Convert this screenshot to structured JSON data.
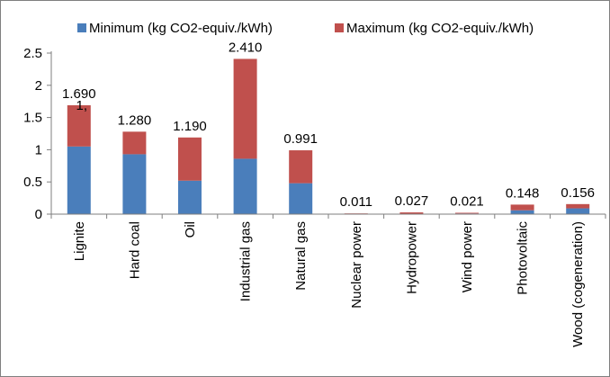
{
  "chart_data": {
    "type": "bar",
    "stacked": true,
    "categories": [
      "Lignite",
      "Hard coal",
      "Oil",
      "Industrial gas",
      "Natural gas",
      "Nuclear power",
      "Hydropower",
      "Wind power",
      "Photovoltaic",
      "Wood (cogeneration)"
    ],
    "series": [
      {
        "name": "Minimum (kg CO2-equiv./kWh)",
        "color": "#4a7ebb",
        "values": [
          1.05,
          0.93,
          0.52,
          0.86,
          0.48,
          0.004,
          0.006,
          0.01,
          0.06,
          0.09
        ]
      },
      {
        "name": "Maximum (kg CO2-equiv./kWh)",
        "color": "#c0504d",
        "values": [
          0.64,
          0.35,
          0.67,
          1.55,
          0.511,
          0.007,
          0.021,
          0.011,
          0.088,
          0.066
        ]
      }
    ],
    "data_labels": [
      "1.690",
      "1.280",
      "1.190",
      "2.410",
      "0.991",
      "0.011",
      "0.027",
      "0.021",
      "0.148",
      "0.156"
    ],
    "stray_label": "1,",
    "yticks": [
      "0",
      "0.5",
      "1",
      "1.5",
      "2",
      "2.5"
    ],
    "ylim": [
      0,
      2.5
    ],
    "grid": false,
    "legend_position": "top",
    "title": "",
    "xlabel": "",
    "ylabel": ""
  }
}
